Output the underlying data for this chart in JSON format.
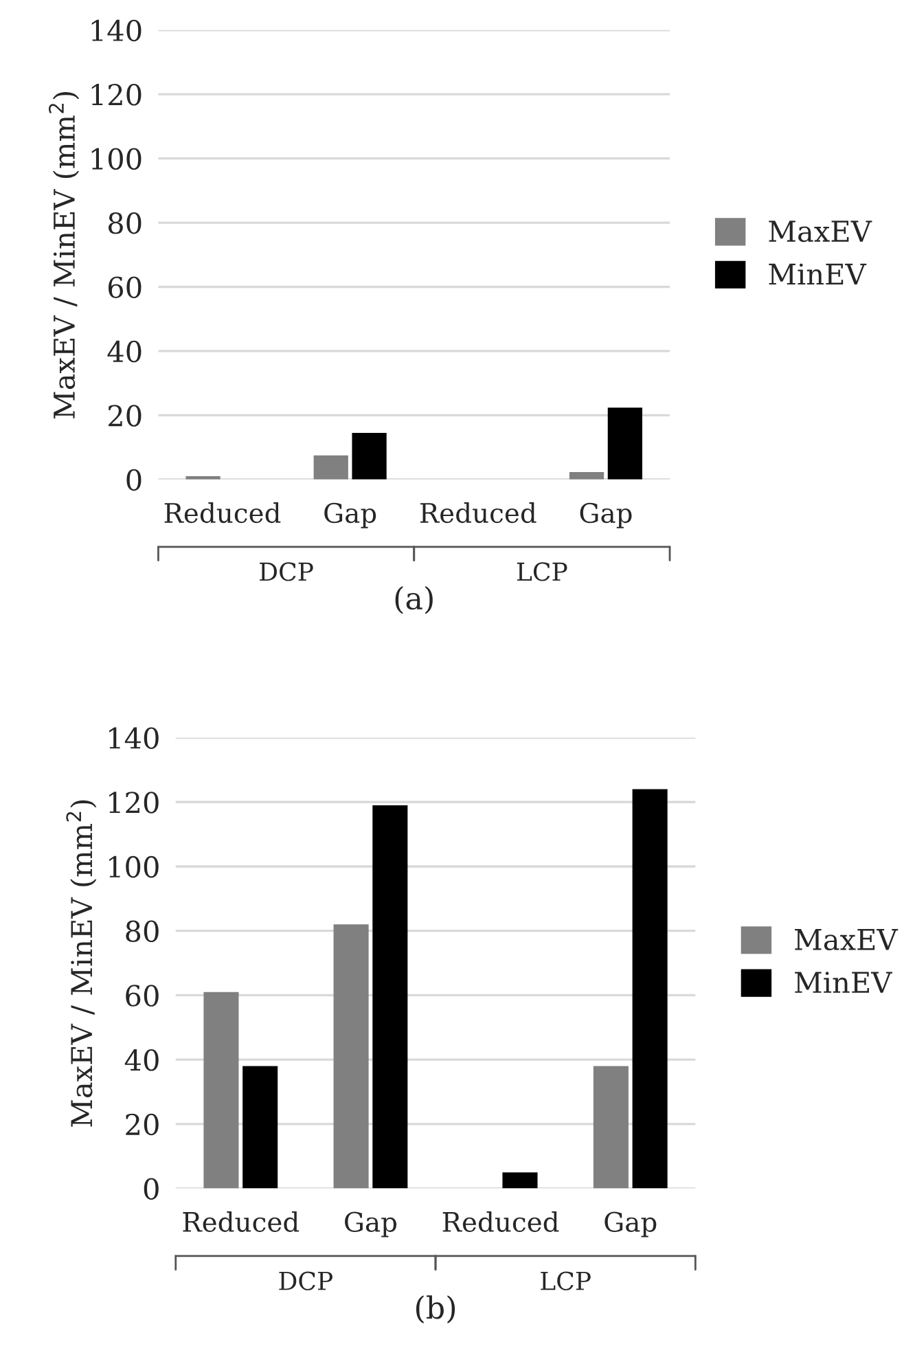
{
  "chart_data": [
    {
      "type": "bar",
      "categories": [
        "Reduced",
        "Gap",
        "Reduced",
        "Gap"
      ],
      "ylabel": "MaxEV / MinEV (mm$^{2}$)",
      "ylim": [
        0,
        140
      ],
      "yticks": [
        0,
        20,
        40,
        60,
        80,
        100,
        120,
        140
      ],
      "grid": "y",
      "legend": "right",
      "series": [
        {
          "name": "MaxEV",
          "color": "#808080",
          "values": [
            1,
            7.5,
            0,
            2.3
          ]
        },
        {
          "name": "MinEV",
          "color": "#000000",
          "values": [
            0,
            14.5,
            0,
            22.4
          ]
        }
      ],
      "annotations": [
        "DCP",
        "LCP",
        "(a)"
      ]
    },
    {
      "type": "bar",
      "categories": [
        "Reduced",
        "Gap",
        "Reduced",
        "Gap"
      ],
      "ylabel": "MaxEV / MinEV (mm$^{2}$)",
      "ylim": [
        0,
        140
      ],
      "yticks": [
        0,
        20,
        40,
        60,
        80,
        100,
        120,
        140
      ],
      "grid": "y",
      "legend": "right",
      "series": [
        {
          "name": "MaxEV",
          "color": "#808080",
          "values": [
            61,
            82,
            0,
            38
          ]
        },
        {
          "name": "MinEV",
          "color": "#000000",
          "values": [
            38,
            119,
            5,
            124
          ]
        }
      ],
      "annotations": [
        "DCP",
        "LCP",
        "(b)"
      ]
    }
  ]
}
